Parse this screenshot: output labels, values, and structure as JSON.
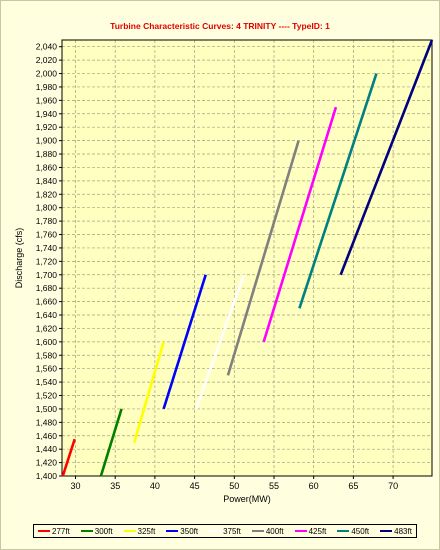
{
  "chart_data": {
    "type": "line",
    "title": "Turbine Characteristic Curves: 4   TRINITY ---- TypeID: 1",
    "xlabel": "Power(MW)",
    "ylabel": "Discharge (cfs)",
    "xlim": [
      28.3,
      74.9
    ],
    "ylim": [
      1400,
      2050
    ],
    "xticks": [
      30,
      35,
      40,
      45,
      50,
      55,
      60,
      65,
      70
    ],
    "yticks_step": 20,
    "grid": true,
    "legend_position": "bottom",
    "background": "#ffffe0",
    "plot_background": "#ffffc0",
    "series": [
      {
        "name": "277ft",
        "color": "#ff0000",
        "points": [
          [
            28.4,
            1400
          ],
          [
            29.9,
            1455
          ]
        ]
      },
      {
        "name": "300ft",
        "color": "#008000",
        "points": [
          [
            33.2,
            1400
          ],
          [
            35.8,
            1500
          ]
        ]
      },
      {
        "name": "325ft",
        "color": "#ffff00",
        "points": [
          [
            37.4,
            1450
          ],
          [
            41.1,
            1600
          ]
        ]
      },
      {
        "name": "350ft",
        "color": "#0000ff",
        "points": [
          [
            41.1,
            1500
          ],
          [
            46.4,
            1700
          ]
        ]
      },
      {
        "name": "375ft",
        "color": "#ffffff",
        "points": [
          [
            45.2,
            1500
          ],
          [
            51.2,
            1700
          ]
        ]
      },
      {
        "name": "400ft",
        "color": "#808080",
        "points": [
          [
            49.2,
            1550
          ],
          [
            58.1,
            1900
          ]
        ]
      },
      {
        "name": "425ft",
        "color": "#ff00ff",
        "points": [
          [
            53.7,
            1600
          ],
          [
            62.8,
            1950
          ]
        ]
      },
      {
        "name": "450ft",
        "color": "#008080",
        "points": [
          [
            58.2,
            1650
          ],
          [
            67.9,
            2000
          ]
        ]
      },
      {
        "name": "483ft",
        "color": "#000080",
        "points": [
          [
            63.4,
            1700
          ],
          [
            74.9,
            2050
          ]
        ]
      }
    ]
  }
}
